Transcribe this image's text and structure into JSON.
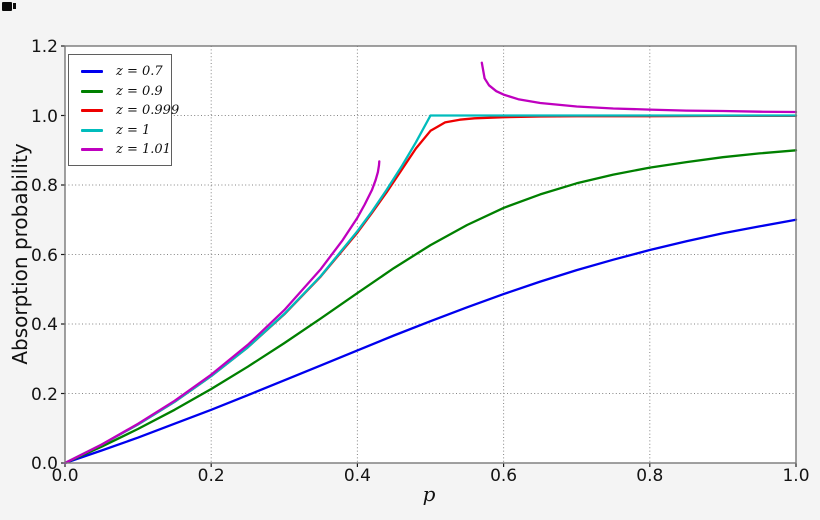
{
  "figure": {
    "background": "#f4f4f4",
    "plot_background": "#ffffff",
    "frame_color": "#787878",
    "grid_color": "#858585"
  },
  "chart_data": {
    "type": "line",
    "title": "",
    "xlabel": "p",
    "ylabel": "Absorption probability",
    "xlim": [
      0.0,
      1.0
    ],
    "ylim": [
      0.0,
      1.2
    ],
    "grid": true,
    "grid_style": "dotted",
    "legend_position": "upper left",
    "x_ticks": {
      "values": [
        0.0,
        0.2,
        0.4,
        0.6,
        0.8,
        1.0
      ],
      "labels": [
        "0.0",
        "0.2",
        "0.4",
        "0.6",
        "0.8",
        "1.0"
      ]
    },
    "y_ticks": {
      "values": [
        0.0,
        0.2,
        0.4,
        0.6,
        0.8,
        1.0,
        1.2
      ],
      "labels": [
        "0.0",
        "0.2",
        "0.4",
        "0.6",
        "0.8",
        "1.0",
        "1.2"
      ]
    },
    "series": [
      {
        "id": "z-0.7",
        "label": "z = 0.7",
        "color": "#0000ee",
        "segments": [
          {
            "x": [
              0,
              0.05,
              0.1,
              0.15,
              0.2,
              0.25,
              0.3,
              0.35,
              0.4,
              0.45,
              0.5,
              0.55,
              0.6,
              0.65,
              0.7,
              0.75,
              0.8,
              0.85,
              0.9,
              0.95,
              1.0
            ],
            "y": [
              0,
              0.036,
              0.073,
              0.113,
              0.153,
              0.195,
              0.238,
              0.281,
              0.324,
              0.367,
              0.408,
              0.448,
              0.486,
              0.522,
              0.555,
              0.585,
              0.613,
              0.638,
              0.661,
              0.681,
              0.7
            ]
          }
        ]
      },
      {
        "id": "z-0.9",
        "label": "z = 0.9",
        "color": "#008000",
        "segments": [
          {
            "x": [
              0,
              0.05,
              0.1,
              0.15,
              0.2,
              0.25,
              0.3,
              0.35,
              0.4,
              0.45,
              0.5,
              0.55,
              0.6,
              0.65,
              0.7,
              0.75,
              0.8,
              0.85,
              0.9,
              0.95,
              1.0
            ],
            "y": [
              0,
              0.047,
              0.098,
              0.153,
              0.213,
              0.277,
              0.345,
              0.416,
              0.489,
              0.561,
              0.627,
              0.685,
              0.734,
              0.773,
              0.805,
              0.83,
              0.85,
              0.866,
              0.88,
              0.891,
              0.9
            ]
          }
        ]
      },
      {
        "id": "z-0.999",
        "label": "z = 0.999",
        "color": "#ee0000",
        "segments": [
          {
            "x": [
              0,
              0.05,
              0.1,
              0.15,
              0.2,
              0.25,
              0.3,
              0.35,
              0.4,
              0.42,
              0.44,
              0.46,
              0.48,
              0.5,
              0.52,
              0.54,
              0.56,
              0.6,
              0.65,
              0.7,
              0.8,
              0.9,
              1.0
            ],
            "y": [
              0,
              0.053,
              0.111,
              0.176,
              0.25,
              0.333,
              0.428,
              0.537,
              0.663,
              0.72,
              0.779,
              0.842,
              0.905,
              0.956,
              0.98,
              0.988,
              0.992,
              0.995,
              0.997,
              0.998,
              0.998,
              0.999,
              0.999
            ]
          }
        ]
      },
      {
        "id": "z-1",
        "label": "z = 1",
        "color": "#00bcbc",
        "segments": [
          {
            "x": [
              0,
              0.05,
              0.1,
              0.15,
              0.2,
              0.25,
              0.3,
              0.35,
              0.4,
              0.42,
              0.44,
              0.46,
              0.48,
              0.5,
              0.6,
              0.7,
              0.8,
              0.9,
              1.0
            ],
            "y": [
              0,
              0.053,
              0.111,
              0.176,
              0.25,
              0.333,
              0.429,
              0.538,
              0.667,
              0.724,
              0.786,
              0.852,
              0.923,
              1.0,
              1.0,
              1.0,
              1.0,
              1.0,
              1.0
            ]
          }
        ]
      },
      {
        "id": "z-1.01",
        "label": "z = 1.01",
        "color": "#bf00bf",
        "segments": [
          {
            "x": [
              0,
              0.05,
              0.1,
              0.15,
              0.2,
              0.25,
              0.3,
              0.35,
              0.38,
              0.4,
              0.41,
              0.42,
              0.425,
              0.428,
              0.4295,
              0.43
            ],
            "y": [
              0,
              0.053,
              0.113,
              0.179,
              0.254,
              0.34,
              0.44,
              0.558,
              0.642,
              0.706,
              0.744,
              0.786,
              0.815,
              0.837,
              0.857,
              0.868
            ]
          },
          {
            "x": [
              0.5702,
              0.574,
              0.58,
              0.59,
              0.6,
              0.62,
              0.65,
              0.7,
              0.75,
              0.8,
              0.85,
              0.9,
              0.95,
              1.0
            ],
            "y": [
              1.152,
              1.107,
              1.087,
              1.07,
              1.06,
              1.047,
              1.036,
              1.026,
              1.02,
              1.017,
              1.014,
              1.013,
              1.011,
              1.01
            ]
          }
        ]
      }
    ]
  }
}
